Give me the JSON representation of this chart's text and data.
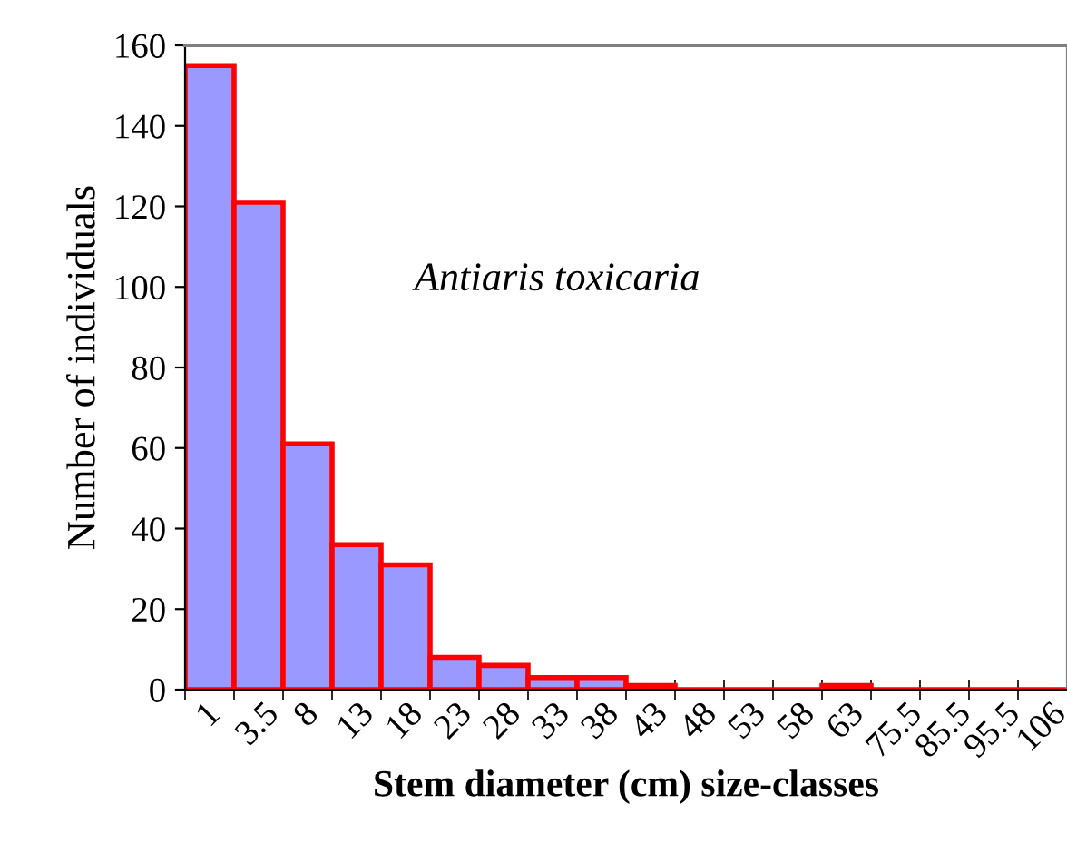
{
  "chart_data": {
    "type": "bar",
    "xlabel": "Stem diameter (cm) size-classes",
    "ylabel": "Number of individuals",
    "categories": [
      "1",
      "3.5",
      "8",
      "13",
      "18",
      "23",
      "28",
      "33",
      "38",
      "43",
      "48",
      "53",
      "58",
      "63",
      "75.5",
      "85.5",
      "95.5",
      "106"
    ],
    "values": [
      155,
      121,
      61,
      36,
      31,
      8,
      6,
      3,
      3,
      1,
      0,
      0,
      0,
      1,
      0,
      0,
      0,
      0
    ],
    "color": "#9999ff",
    "ylim": [
      0,
      160
    ],
    "yticks": [
      0,
      20,
      40,
      60,
      80,
      100,
      120,
      140,
      160
    ],
    "grid": false,
    "annotations": [
      "Antiaris toxicaria"
    ]
  }
}
